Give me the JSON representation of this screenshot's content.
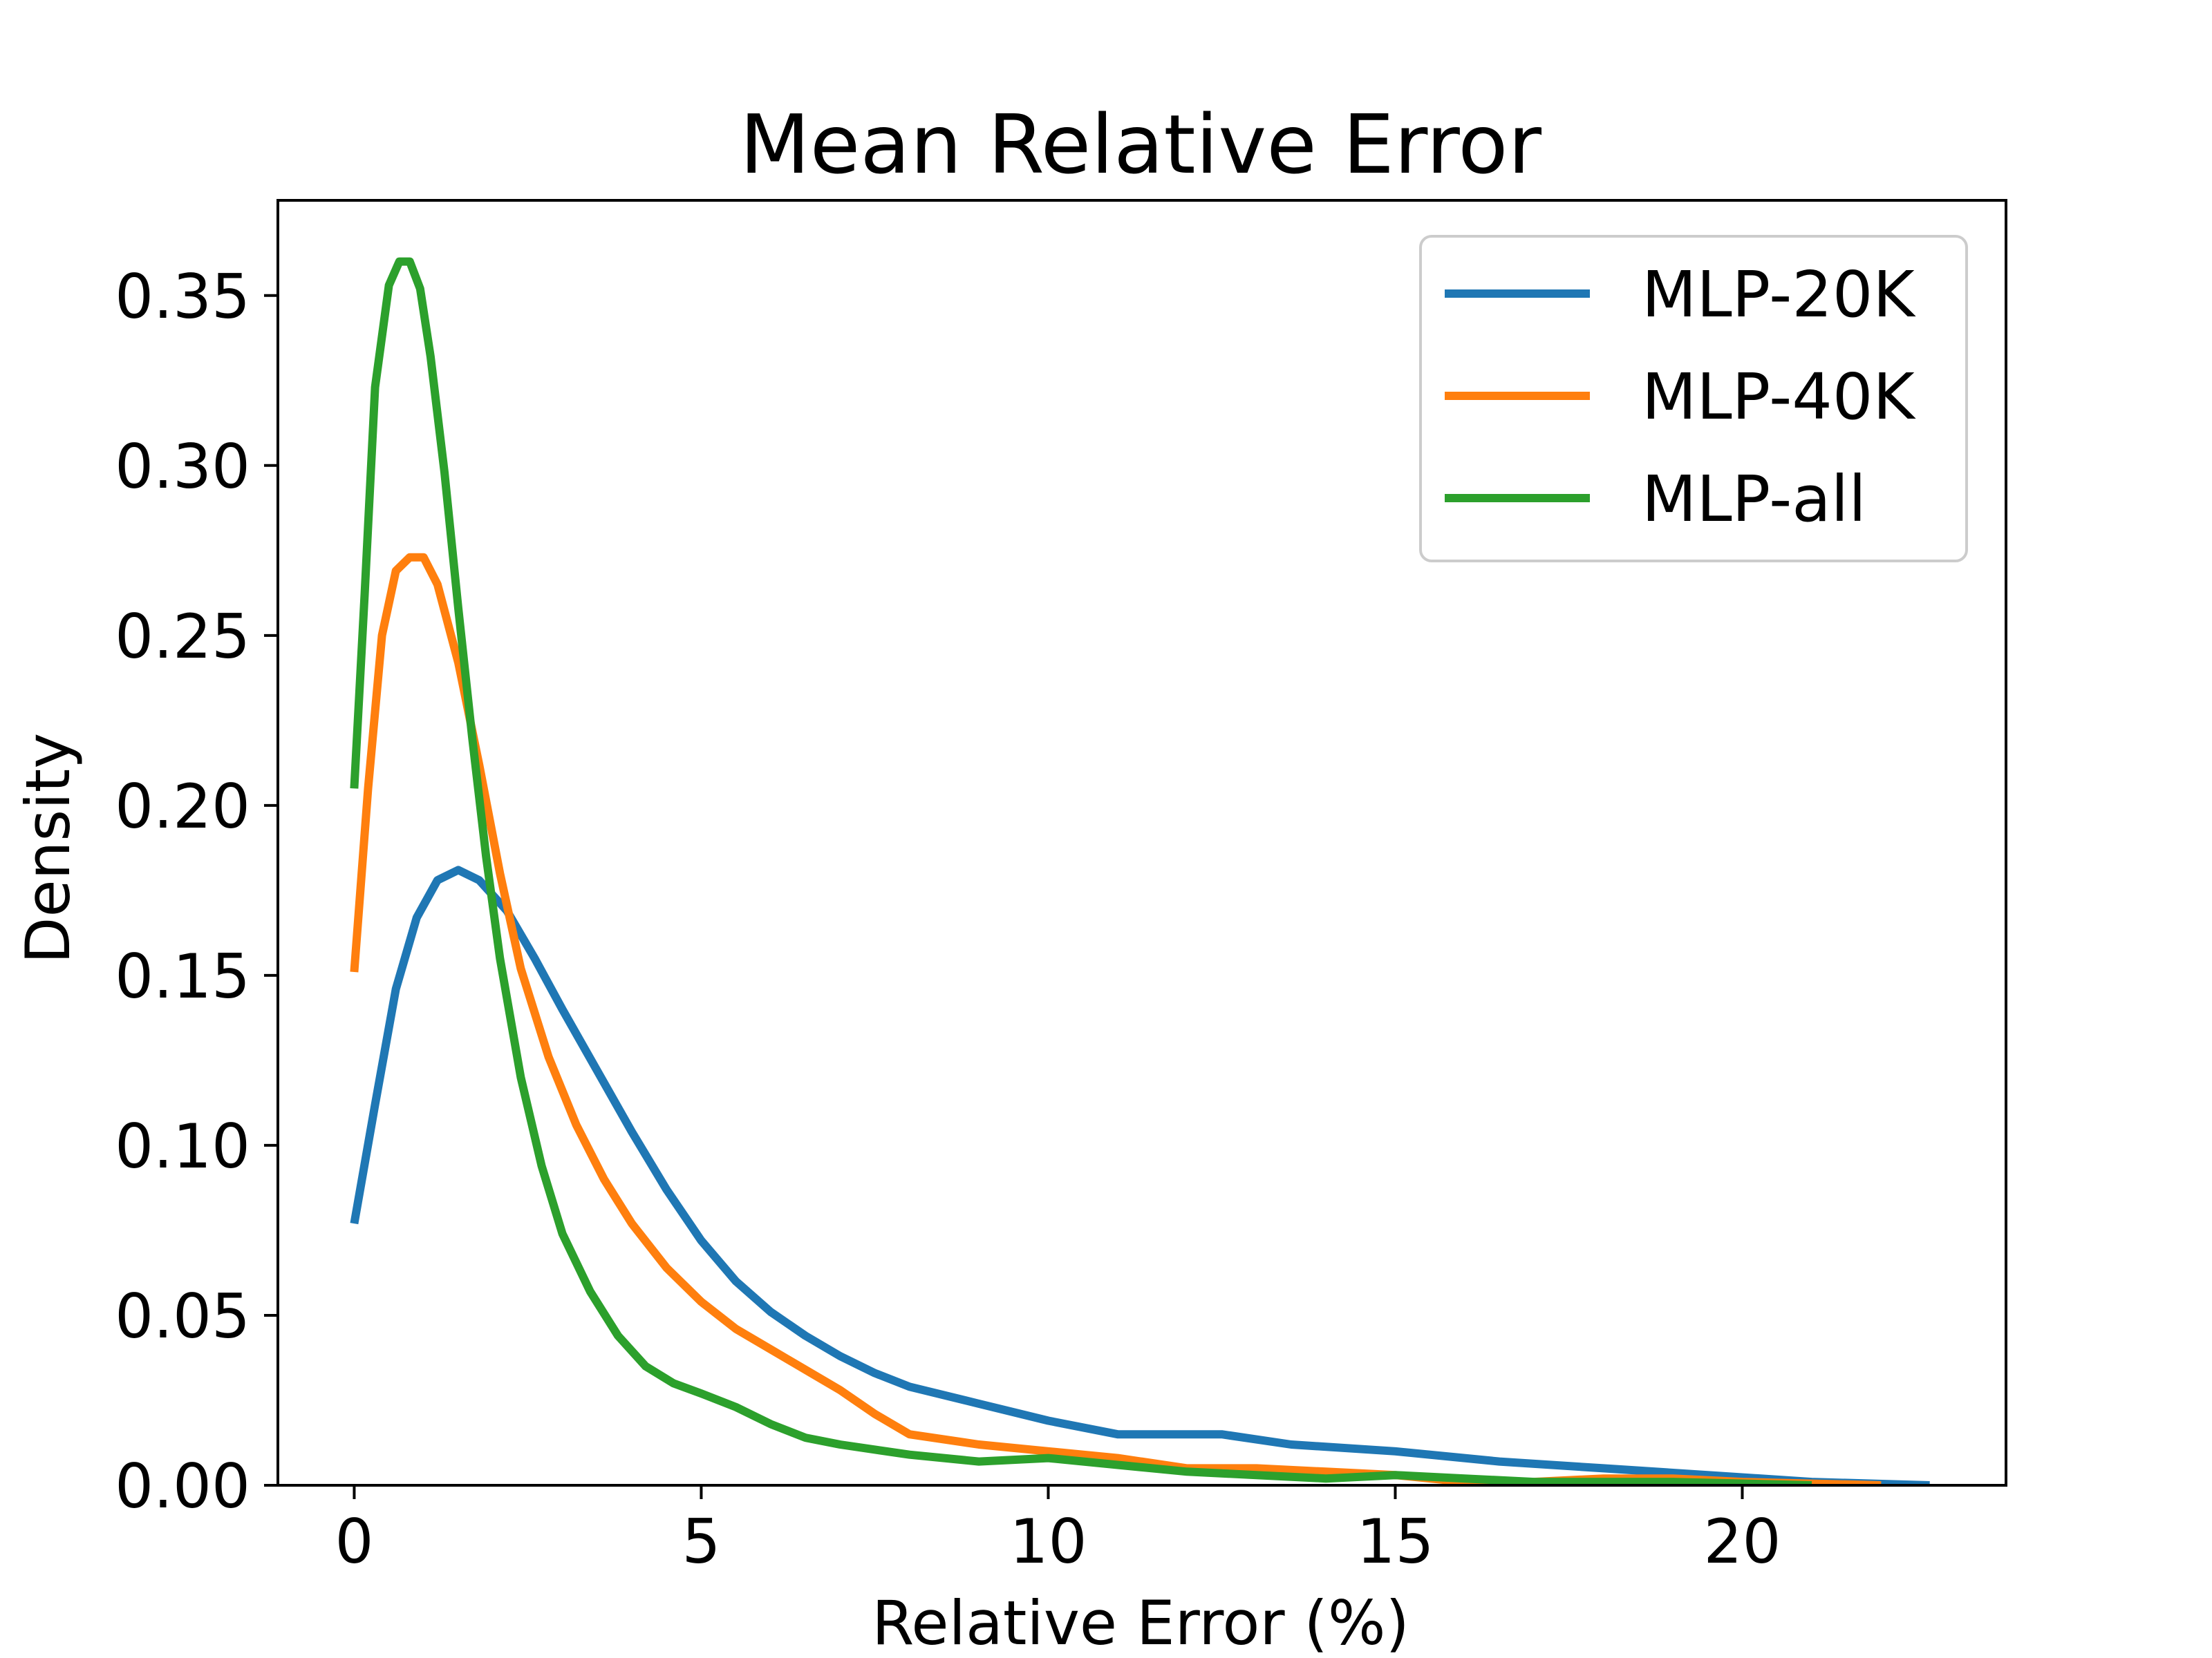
{
  "chart_data": {
    "type": "line",
    "title": "Mean Relative Error",
    "xlabel": "Relative Error (%)",
    "ylabel": "Density",
    "xlim": [
      -1.1,
      23.8
    ],
    "ylim": [
      0.0,
      0.378
    ],
    "xticks": [
      0,
      5,
      10,
      15,
      20
    ],
    "xtick_labels": [
      "0",
      "5",
      "10",
      "15",
      "20"
    ],
    "yticks": [
      0.0,
      0.05,
      0.1,
      0.15,
      0.2,
      0.25,
      0.3,
      0.35
    ],
    "ytick_labels": [
      "0.00",
      "0.05",
      "0.10",
      "0.15",
      "0.20",
      "0.25",
      "0.30",
      "0.35"
    ],
    "grid": false,
    "legend_position": "top-right",
    "series": [
      {
        "name": "MLP-20K",
        "color": "#1f77b4",
        "points": [
          [
            0.0,
            0.077
          ],
          [
            0.3,
            0.112
          ],
          [
            0.6,
            0.146
          ],
          [
            0.9,
            0.167
          ],
          [
            1.2,
            0.178
          ],
          [
            1.5,
            0.181
          ],
          [
            1.8,
            0.178
          ],
          [
            2.2,
            0.169
          ],
          [
            2.6,
            0.155
          ],
          [
            3.0,
            0.14
          ],
          [
            3.5,
            0.122
          ],
          [
            4.0,
            0.104
          ],
          [
            4.5,
            0.087
          ],
          [
            5.0,
            0.072
          ],
          [
            5.5,
            0.06
          ],
          [
            6.0,
            0.051
          ],
          [
            6.5,
            0.044
          ],
          [
            7.0,
            0.038
          ],
          [
            7.5,
            0.033
          ],
          [
            8.0,
            0.029
          ],
          [
            9.0,
            0.024
          ],
          [
            10.0,
            0.019
          ],
          [
            11.0,
            0.015
          ],
          [
            12.0,
            0.015
          ],
          [
            12.5,
            0.015
          ],
          [
            13.5,
            0.012
          ],
          [
            15.0,
            0.01
          ],
          [
            16.5,
            0.007
          ],
          [
            18.0,
            0.005
          ],
          [
            19.5,
            0.003
          ],
          [
            21.0,
            0.001
          ],
          [
            22.7,
            0.0
          ]
        ]
      },
      {
        "name": "MLP-40K",
        "color": "#ff7f0e",
        "points": [
          [
            0.0,
            0.151
          ],
          [
            0.2,
            0.205
          ],
          [
            0.4,
            0.25
          ],
          [
            0.6,
            0.269
          ],
          [
            0.8,
            0.273
          ],
          [
            1.0,
            0.273
          ],
          [
            1.2,
            0.265
          ],
          [
            1.5,
            0.242
          ],
          [
            1.8,
            0.212
          ],
          [
            2.1,
            0.18
          ],
          [
            2.4,
            0.152
          ],
          [
            2.8,
            0.126
          ],
          [
            3.2,
            0.106
          ],
          [
            3.6,
            0.09
          ],
          [
            4.0,
            0.077
          ],
          [
            4.5,
            0.064
          ],
          [
            5.0,
            0.054
          ],
          [
            5.5,
            0.046
          ],
          [
            6.0,
            0.04
          ],
          [
            6.5,
            0.034
          ],
          [
            7.0,
            0.028
          ],
          [
            7.5,
            0.021
          ],
          [
            8.0,
            0.015
          ],
          [
            9.0,
            0.012
          ],
          [
            10.0,
            0.01
          ],
          [
            11.0,
            0.008
          ],
          [
            12.0,
            0.005
          ],
          [
            13.0,
            0.005
          ],
          [
            14.0,
            0.004
          ],
          [
            15.0,
            0.003
          ],
          [
            16.0,
            0.001
          ],
          [
            17.0,
            0.001
          ],
          [
            18.0,
            0.002
          ],
          [
            19.0,
            0.002
          ],
          [
            20.0,
            0.001
          ],
          [
            22.0,
            0.0
          ]
        ]
      },
      {
        "name": "MLP-all",
        "color": "#2ca02c",
        "points": [
          [
            0.0,
            0.205
          ],
          [
            0.15,
            0.262
          ],
          [
            0.3,
            0.323
          ],
          [
            0.5,
            0.353
          ],
          [
            0.65,
            0.36
          ],
          [
            0.8,
            0.36
          ],
          [
            0.95,
            0.352
          ],
          [
            1.1,
            0.332
          ],
          [
            1.3,
            0.298
          ],
          [
            1.5,
            0.258
          ],
          [
            1.7,
            0.22
          ],
          [
            1.9,
            0.185
          ],
          [
            2.1,
            0.155
          ],
          [
            2.4,
            0.12
          ],
          [
            2.7,
            0.094
          ],
          [
            3.0,
            0.074
          ],
          [
            3.4,
            0.057
          ],
          [
            3.8,
            0.044
          ],
          [
            4.2,
            0.035
          ],
          [
            4.6,
            0.03
          ],
          [
            5.0,
            0.027
          ],
          [
            5.5,
            0.023
          ],
          [
            6.0,
            0.018
          ],
          [
            6.5,
            0.014
          ],
          [
            7.0,
            0.012
          ],
          [
            8.0,
            0.009
          ],
          [
            9.0,
            0.007
          ],
          [
            10.0,
            0.008
          ],
          [
            11.0,
            0.006
          ],
          [
            12.0,
            0.004
          ],
          [
            13.0,
            0.003
          ],
          [
            14.0,
            0.002
          ],
          [
            15.0,
            0.003
          ],
          [
            16.0,
            0.002
          ],
          [
            17.0,
            0.001
          ],
          [
            18.0,
            0.001
          ],
          [
            19.0,
            0.001
          ],
          [
            21.0,
            0.0
          ]
        ]
      }
    ]
  }
}
